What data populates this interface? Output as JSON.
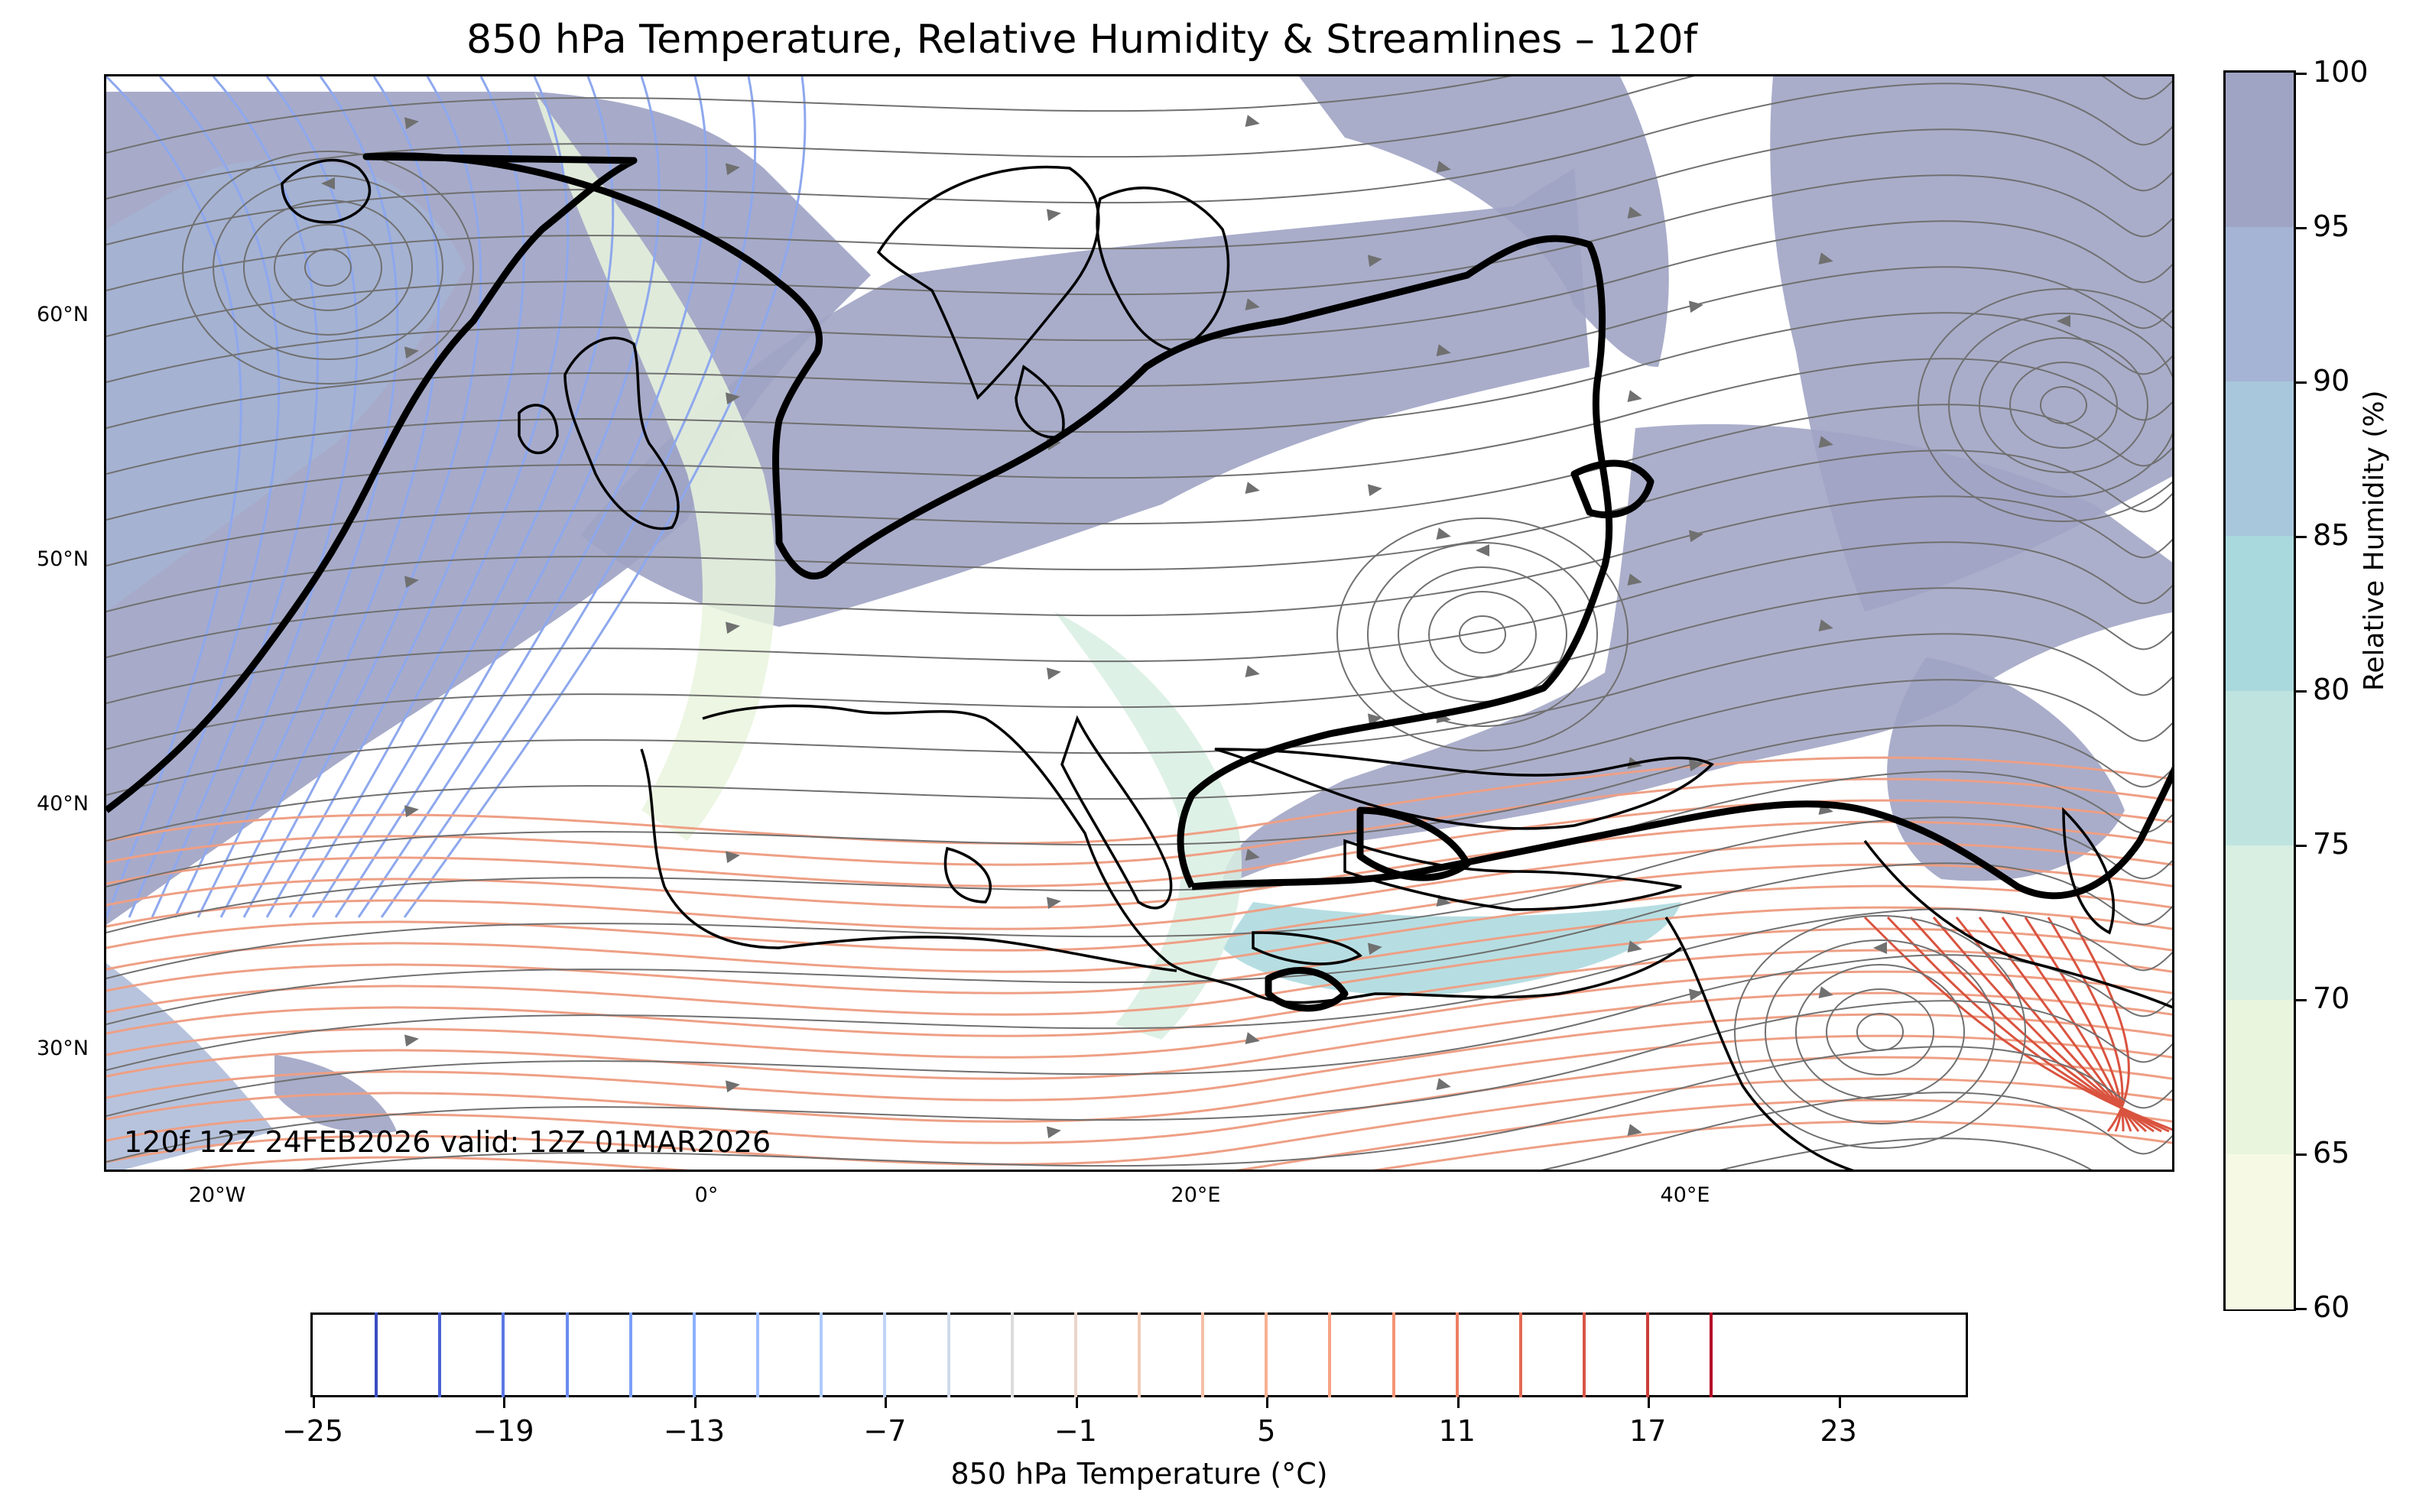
{
  "figure": {
    "title": "850 hPa Temperature, Relative Humidity & Streamlines – 120f",
    "valid_label": "120f 12Z 24FEB2026 valid: 12Z 01MAR2026"
  },
  "map": {
    "extent": {
      "lon_min": -25,
      "lon_max": 60,
      "lat_min": 25,
      "lat_max": 70
    },
    "lat_labels": [
      "60°N",
      "50°N",
      "40°N",
      "30°N"
    ],
    "lon_labels": [
      "20°W",
      "0°",
      "20°E",
      "40°E"
    ],
    "colors": {
      "streamline": "#707070",
      "front": "#000000",
      "coast": "#000000",
      "cold_contour": "#8ea8ee",
      "warm_contour": "#ee9f85"
    }
  },
  "rh_colorbar": {
    "title": "Relative Humidity (%)",
    "tick_labels": [
      "100",
      "95",
      "90",
      "85",
      "80",
      "75",
      "70",
      "65",
      "60"
    ],
    "band_colors": [
      "#a0a4c4",
      "#a5b4d5",
      "#a8c6dc",
      "#a9d8dd",
      "#bfe4e0",
      "#d8efe2",
      "#e9f5dd",
      "#f6fae4"
    ]
  },
  "temp_colorbar": {
    "title": "850 hPa Temperature (°C)",
    "tick_labels": [
      "−25",
      "−19",
      "−13",
      "−7",
      "−1",
      "5",
      "11",
      "17",
      "23"
    ],
    "level_colors": [
      "#3b4cc0",
      "#4961d2",
      "#5977e3",
      "#6a8bef",
      "#7b9ff9",
      "#8db0fe",
      "#9ebeff",
      "#b0cbfc",
      "#c0d4f5",
      "#d0dbe9",
      "#dddcdc",
      "#e9d5cb",
      "#f2cbb7",
      "#f6bfa6",
      "#f7b194",
      "#f6a385",
      "#f39475",
      "#ec7f63",
      "#e36a53",
      "#d85646",
      "#cb3e38",
      "#b40426"
    ]
  }
}
